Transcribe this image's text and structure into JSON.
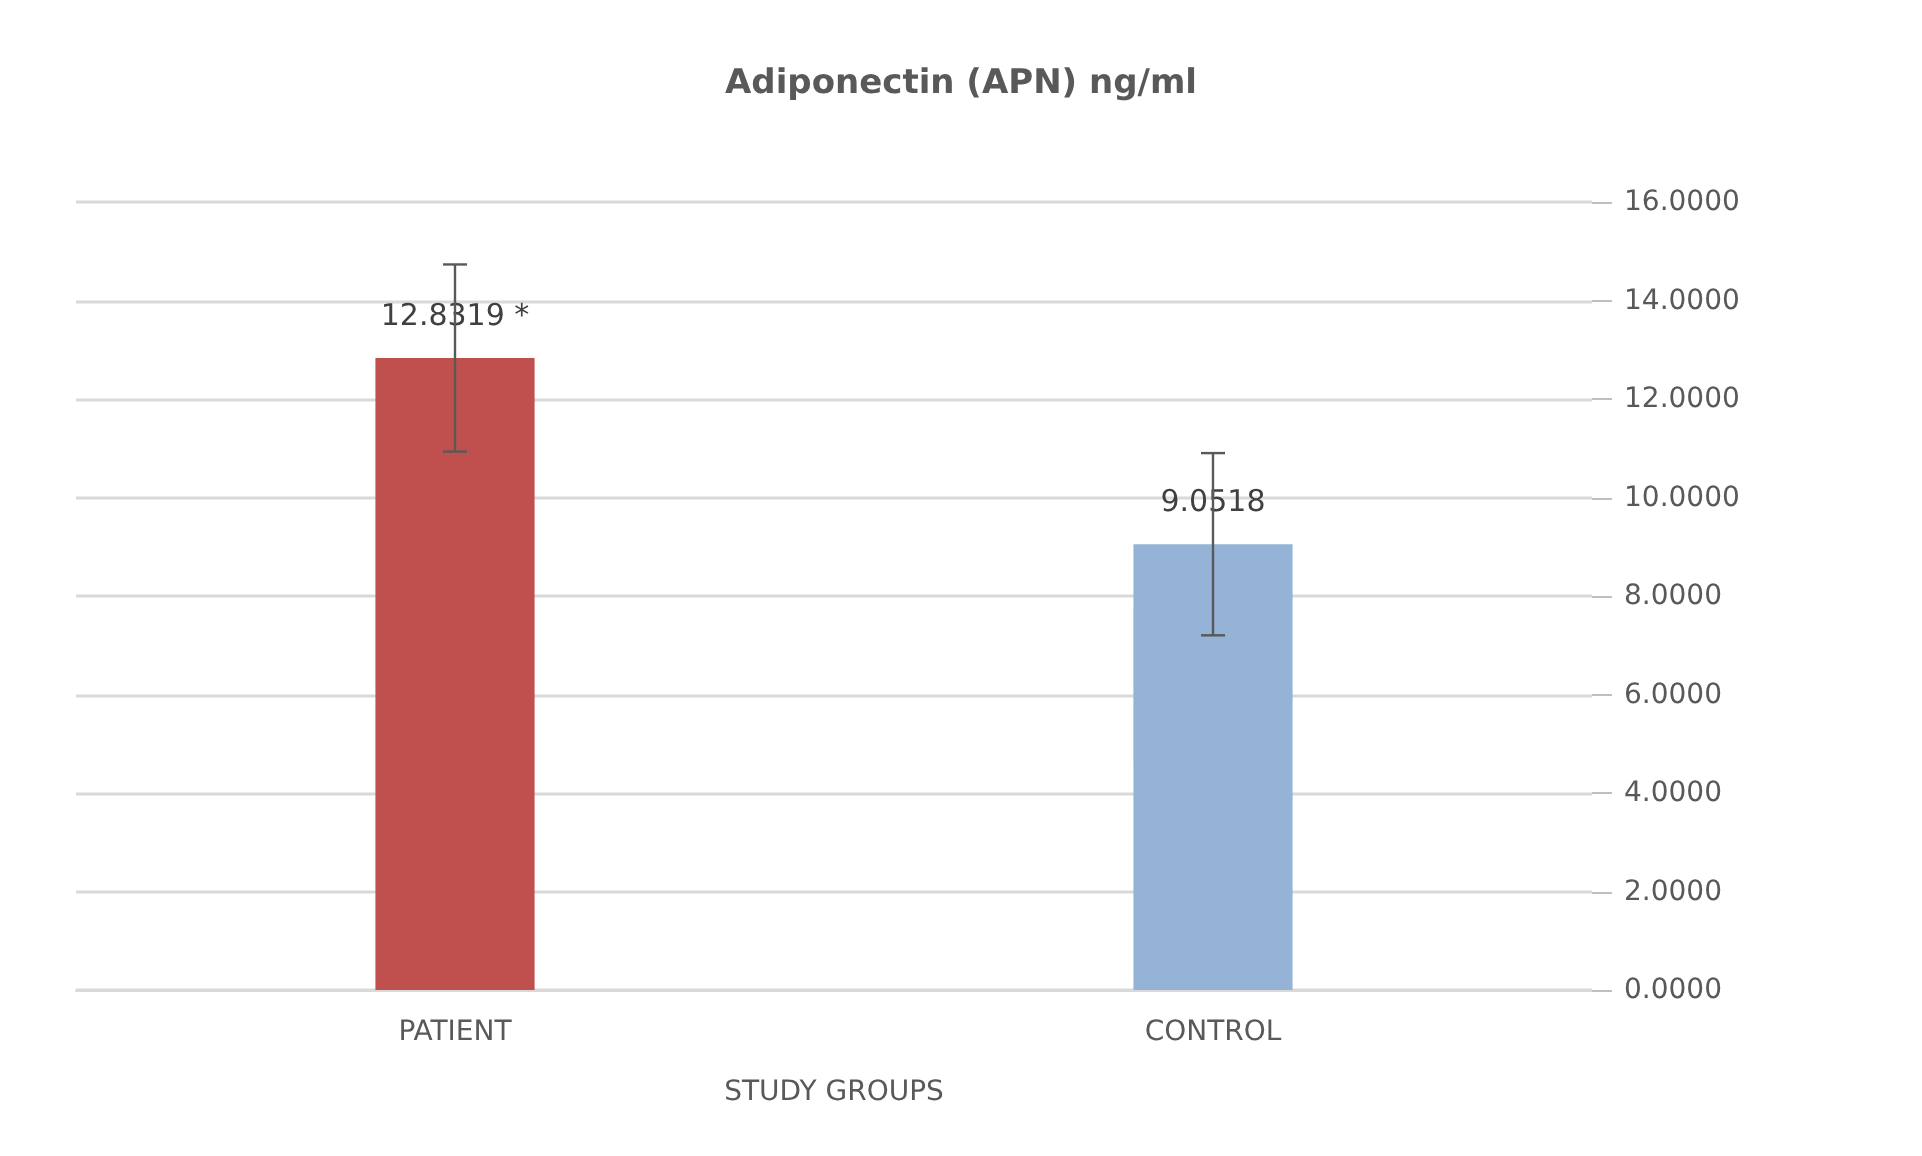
{
  "chart_data": {
    "type": "bar",
    "title": "Adiponectin (APN) ng/ml",
    "xlabel": "STUDY GROUPS",
    "categories": [
      "PATIENT",
      "CONTROL"
    ],
    "values": [
      12.8319,
      9.0518
    ],
    "colors": [
      "#c0504d",
      "#95b3d7"
    ],
    "errors": [
      1.9,
      1.85
    ],
    "value_labels": [
      "12.8319 *",
      "9.0518"
    ],
    "ylim": [
      0,
      16
    ],
    "yticks": [
      {
        "value": 0,
        "label": "0.0000"
      },
      {
        "value": 2,
        "label": "2.0000"
      },
      {
        "value": 4,
        "label": "4.0000"
      },
      {
        "value": 6,
        "label": "6.0000"
      },
      {
        "value": 8,
        "label": "8.0000"
      },
      {
        "value": 10,
        "label": "10.0000"
      },
      {
        "value": 12,
        "label": "12.0000"
      },
      {
        "value": 14,
        "label": "14.0000"
      },
      {
        "value": 16,
        "label": "16.0000"
      }
    ],
    "grid": "y"
  }
}
